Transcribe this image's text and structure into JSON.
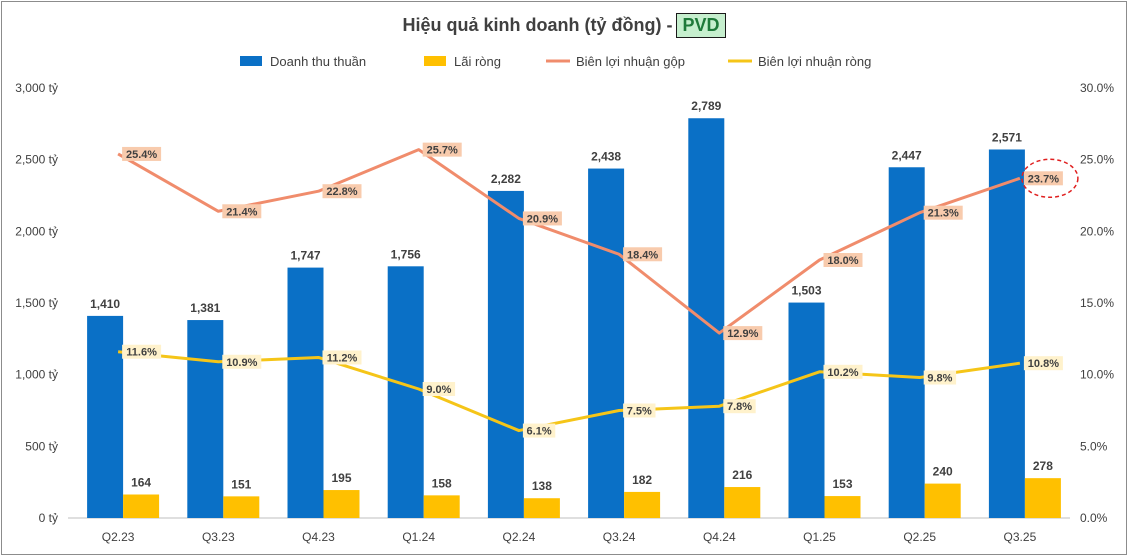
{
  "chart_data": {
    "type": "bar+line",
    "title": "Hiệu quả kinh doanh (tỷ đồng) -",
    "ticker": "PVD",
    "categories": [
      "Q2.23",
      "Q3.23",
      "Q4.23",
      "Q1.24",
      "Q2.24",
      "Q3.24",
      "Q4.24",
      "Q1.25",
      "Q2.25",
      "Q3.25"
    ],
    "bar_series": [
      {
        "name": "Doanh thu thuần",
        "color": "#0a70c6",
        "values": [
          1410,
          1381,
          1747,
          1756,
          2282,
          2438,
          2789,
          1503,
          2447,
          2571
        ],
        "labels": [
          "1,410",
          "1,381",
          "1,747",
          "1,756",
          "2,282",
          "2,438",
          "2,789",
          "1,503",
          "2,447",
          "2,571"
        ]
      },
      {
        "name": "Lãi ròng",
        "color": "#ffc000",
        "values": [
          164,
          151,
          195,
          158,
          138,
          182,
          216,
          153,
          240,
          278
        ],
        "labels": [
          "164",
          "151",
          "195",
          "158",
          "138",
          "182",
          "216",
          "153",
          "240",
          "278"
        ]
      }
    ],
    "line_series": [
      {
        "name": "Biên lợi nhuận gộp",
        "color": "#f08c6c",
        "label_bg": "#f8cbad",
        "values": [
          25.4,
          21.4,
          22.8,
          25.7,
          20.9,
          18.4,
          12.9,
          18.0,
          21.3,
          23.7
        ],
        "labels": [
          "25.4%",
          "21.4%",
          "22.8%",
          "25.7%",
          "20.9%",
          "18.4%",
          "12.9%",
          "18.0%",
          "21.3%",
          "23.7%"
        ]
      },
      {
        "name": "Biên lợi nhuận ròng",
        "color": "#f5c518",
        "label_bg": "#fff2cc",
        "values": [
          11.6,
          10.9,
          11.2,
          9.0,
          6.1,
          7.5,
          7.8,
          10.2,
          9.8,
          10.8
        ],
        "labels": [
          "11.6%",
          "10.9%",
          "11.2%",
          "9.0%",
          "6.1%",
          "7.5%",
          "7.8%",
          "10.2%",
          "9.8%",
          "10.8%"
        ]
      }
    ],
    "y_left": {
      "ylim": [
        0,
        3000
      ],
      "ticks": [
        "0 tỷ",
        "500 tỷ",
        "1,000 tỷ",
        "1,500 tỷ",
        "2,000 tỷ",
        "2,500 tỷ",
        "3,000 tỷ"
      ]
    },
    "y_right": {
      "ylim": [
        0,
        30
      ],
      "ticks": [
        "0.0%",
        "5.0%",
        "10.0%",
        "15.0%",
        "20.0%",
        "25.0%",
        "30.0%"
      ]
    },
    "legend_position": "top",
    "highlight": "last gross margin label circled in red",
    "highlight_color": "#e02020",
    "grid": false
  }
}
